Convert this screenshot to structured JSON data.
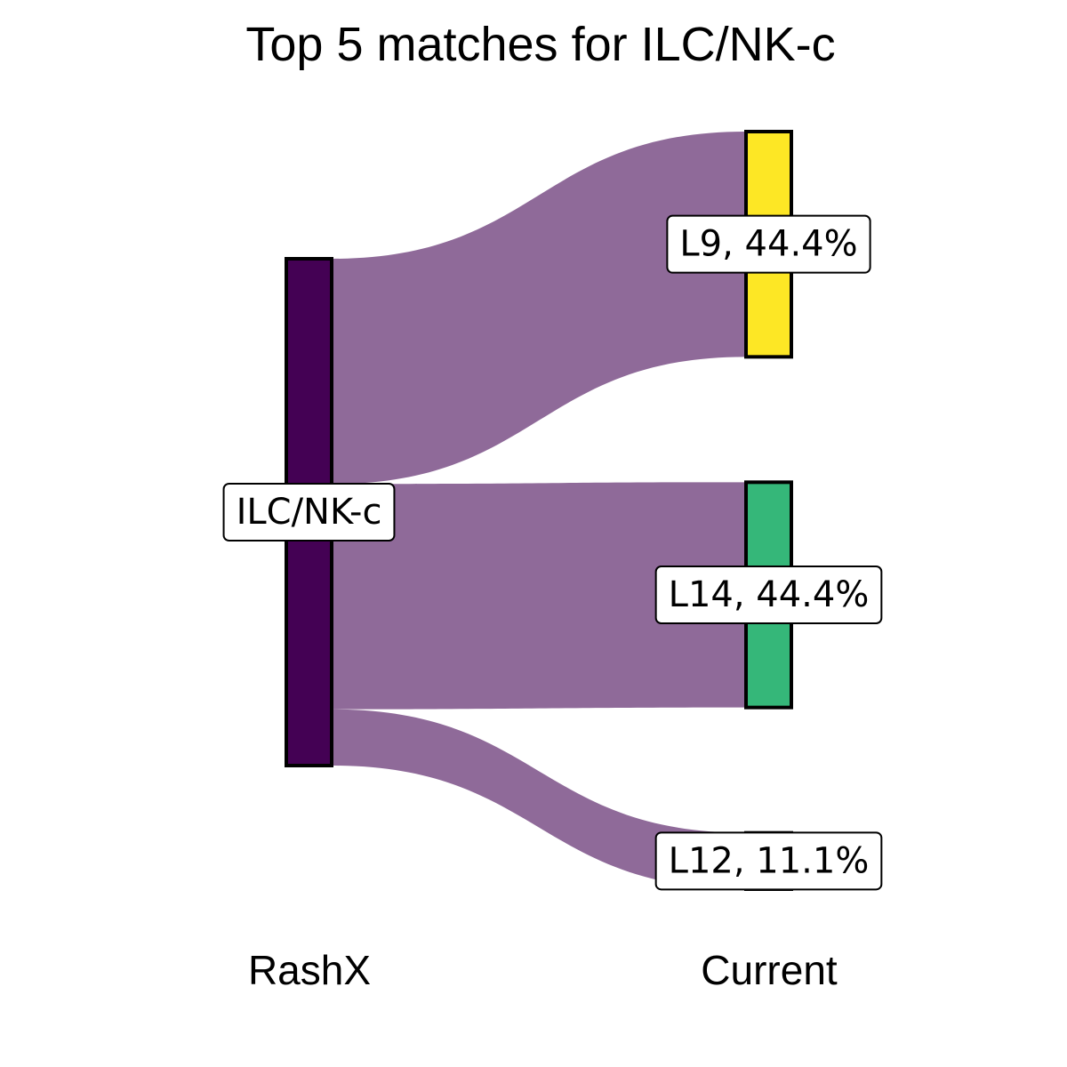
{
  "chart_data": {
    "type": "sankey",
    "title": "Top 5 matches for ILC/NK-c",
    "axis_labels": [
      "RashX",
      "Current"
    ],
    "source": {
      "name": "ILC/NK-c",
      "label": "ILC/NK-c",
      "color": "#440154"
    },
    "targets": [
      {
        "name": "L9",
        "label": "L9, 44.4%",
        "percent": 44.4,
        "color": "#FDE725"
      },
      {
        "name": "L14",
        "label": "L14, 44.4%",
        "percent": 44.4,
        "color": "#35B779"
      },
      {
        "name": "L12",
        "label": "L12, 11.1%",
        "percent": 11.1,
        "color": "#31688E"
      }
    ],
    "flow_color": "#8F6A99",
    "grid": false,
    "legend": "none"
  }
}
